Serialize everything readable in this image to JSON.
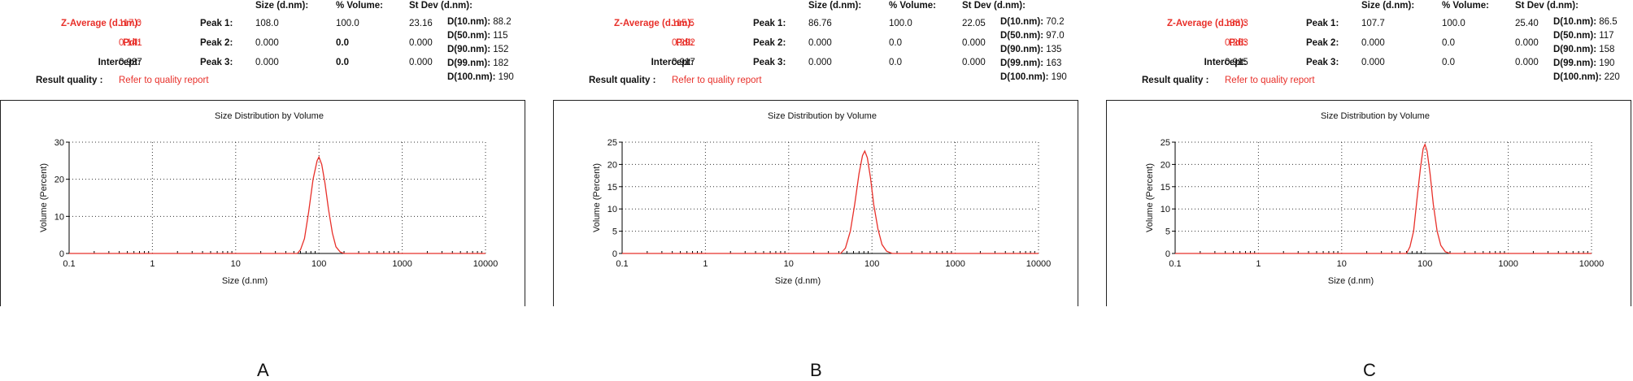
{
  "chart_data": [
    {
      "type": "line",
      "panel_label": "A",
      "title": "Size Distribution by Volume",
      "xlabel": "Size (d.nm)",
      "ylabel": "Volume (Percent)",
      "xscale": "log",
      "xlim": [
        0.1,
        10000
      ],
      "ylim": [
        0,
        30
      ],
      "yticks": [
        0,
        10,
        20,
        30
      ],
      "xtick_labels": [
        "0.1",
        "1",
        "10",
        "100",
        "1000",
        "10000"
      ],
      "grid": true,
      "series": [
        {
          "color": "#e8302a",
          "x": [
            0.1,
            55,
            60,
            67,
            75,
            85,
            95,
            100,
            108,
            118,
            130,
            145,
            160,
            180,
            200,
            10000
          ],
          "y": [
            0,
            0,
            1.0,
            4.0,
            11.0,
            20.0,
            25.0,
            26.0,
            24.0,
            19.0,
            12.0,
            5.5,
            1.8,
            0.4,
            0,
            0
          ]
        }
      ],
      "results": {
        "z_average_label": "Z-Average (d.nm):",
        "z_average": "117.0",
        "pdi_label": "PdI:",
        "pdi": "0.141",
        "intercept_label": "Intercept:",
        "intercept": "0.937",
        "result_quality_label": "Result quality :",
        "result_quality": "Refer to quality report",
        "col_size": "Size (d.nm):",
        "col_volume": "% Volume:",
        "col_stdev": "St Dev (d.nm):",
        "peaks": [
          {
            "label": "Peak 1:",
            "size": "108.0",
            "volume": "100.0",
            "stdev": "23.16"
          },
          {
            "label": "Peak 2:",
            "size": "0.000",
            "volume": "0.0",
            "stdev": "0.000"
          },
          {
            "label": "Peak 3:",
            "size": "0.000",
            "volume": "0.0",
            "stdev": "0.000"
          }
        ],
        "d_values": [
          {
            "label": "D(10.nm):",
            "value": "88.2"
          },
          {
            "label": "D(50.nm):",
            "value": "115"
          },
          {
            "label": "D(90.nm):",
            "value": "152"
          },
          {
            "label": "D(99.nm):",
            "value": "182"
          },
          {
            "label": "D(100.nm):",
            "value": "190"
          }
        ]
      }
    },
    {
      "type": "line",
      "panel_label": "B",
      "title": "Size Distribution by Volume",
      "xlabel": "Size (d.nm)",
      "ylabel": "Volume (Percent)",
      "xscale": "log",
      "xlim": [
        0.1,
        10000
      ],
      "ylim": [
        0,
        25
      ],
      "yticks": [
        0,
        5,
        10,
        15,
        20,
        25
      ],
      "xtick_labels": [
        "0.1",
        "1",
        "10",
        "100",
        "1000",
        "10000"
      ],
      "grid": true,
      "series": [
        {
          "color": "#e8302a",
          "x": [
            0.1,
            42,
            48,
            55,
            62,
            70,
            77,
            82,
            88,
            96,
            105,
            118,
            132,
            150,
            175,
            10000
          ],
          "y": [
            0,
            0,
            1.2,
            5.0,
            11.0,
            18.0,
            22.0,
            23.0,
            21.5,
            17.0,
            11.0,
            5.5,
            2.0,
            0.5,
            0,
            0
          ]
        }
      ],
      "results": {
        "z_average_label": "Z-Average (d.nm):",
        "z_average": "115.5",
        "pdi_label": "PdI:",
        "pdi": "0.292",
        "intercept_label": "Intercept:",
        "intercept": "0.917",
        "result_quality_label": "Result quality :",
        "result_quality": "Refer to quality report",
        "col_size": "Size (d.nm):",
        "col_volume": "% Volume:",
        "col_stdev": "St Dev (d.nm):",
        "peaks": [
          {
            "label": "Peak 1:",
            "size": "86.76",
            "volume": "100.0",
            "stdev": "22.05"
          },
          {
            "label": "Peak 2:",
            "size": "0.000",
            "volume": "0.0",
            "stdev": "0.000"
          },
          {
            "label": "Peak 3:",
            "size": "0.000",
            "volume": "0.0",
            "stdev": "0.000"
          }
        ],
        "d_values": [
          {
            "label": "D(10.nm):",
            "value": "70.2"
          },
          {
            "label": "D(50.nm):",
            "value": "97.0"
          },
          {
            "label": "D(90.nm):",
            "value": "135"
          },
          {
            "label": "D(99.nm):",
            "value": "163"
          },
          {
            "label": "D(100.nm):",
            "value": "190"
          }
        ]
      }
    },
    {
      "type": "line",
      "panel_label": "C",
      "title": "Size Distribution by Volume",
      "xlabel": "Size (d.nm)",
      "ylabel": "Volume (Percent)",
      "xscale": "log",
      "xlim": [
        0.1,
        10000
      ],
      "ylim": [
        0,
        25
      ],
      "yticks": [
        0,
        5,
        10,
        15,
        20,
        25
      ],
      "xtick_labels": [
        "0.1",
        "1",
        "10",
        "100",
        "1000",
        "10000"
      ],
      "grid": true,
      "series": [
        {
          "color": "#e8302a",
          "x": [
            0.1,
            60,
            66,
            73,
            80,
            88,
            95,
            100,
            106,
            115,
            126,
            140,
            155,
            175,
            200,
            10000
          ],
          "y": [
            0,
            0,
            1.5,
            5.0,
            12.0,
            19.0,
            23.5,
            24.5,
            23.0,
            18.0,
            11.0,
            5.0,
            1.8,
            0.4,
            0,
            0
          ]
        }
      ],
      "results": {
        "z_average_label": "Z-Average (d.nm):",
        "z_average": "133.3",
        "pdi_label": "PdI:",
        "pdi": "0.263",
        "intercept_label": "Intercept:",
        "intercept": "0.915",
        "result_quality_label": "Result quality :",
        "result_quality": "Refer to quality report",
        "col_size": "Size (d.nm):",
        "col_volume": "% Volume:",
        "col_stdev": "St Dev (d.nm):",
        "peaks": [
          {
            "label": "Peak 1:",
            "size": "107.7",
            "volume": "100.0",
            "stdev": "25.40"
          },
          {
            "label": "Peak 2:",
            "size": "0.000",
            "volume": "0.0",
            "stdev": "0.000"
          },
          {
            "label": "Peak 3:",
            "size": "0.000",
            "volume": "0.0",
            "stdev": "0.000"
          }
        ],
        "d_values": [
          {
            "label": "D(10.nm):",
            "value": "86.5"
          },
          {
            "label": "D(50.nm):",
            "value": "117"
          },
          {
            "label": "D(90.nm):",
            "value": "158"
          },
          {
            "label": "D(99.nm):",
            "value": "190"
          },
          {
            "label": "D(100.nm):",
            "value": "220"
          }
        ]
      }
    }
  ],
  "colors": {
    "curve": "#e8302a",
    "highlight_text": "#e8302a",
    "grid": "#333333",
    "axis": "#000000"
  }
}
